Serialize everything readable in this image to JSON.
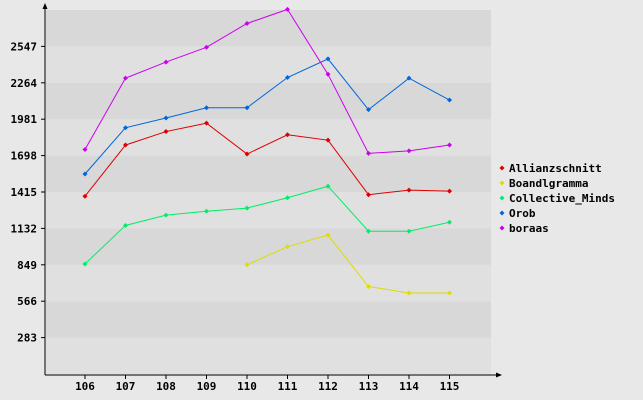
{
  "chart_data": {
    "type": "line",
    "title": "",
    "xlabel": "",
    "ylabel": "",
    "categories": [
      "106",
      "107",
      "108",
      "109",
      "110",
      "111",
      "112",
      "113",
      "114",
      "115"
    ],
    "y_ticks": [
      "283",
      "566",
      "849",
      "1132",
      "1415",
      "1698",
      "1981",
      "2264",
      "2547"
    ],
    "ylim": [
      0,
      2830
    ],
    "grid": "horizontal bands",
    "legend_position": "right",
    "series": [
      {
        "name": "Allianzschnitt",
        "color": "#dd0000",
        "values": [
          1382,
          1780,
          1885,
          1950,
          1710,
          1860,
          1818,
          1394,
          1430,
          1422
        ]
      },
      {
        "name": "Boandlgramma",
        "color": "#dddd00",
        "values": [
          null,
          null,
          null,
          null,
          849,
          990,
          1080,
          680,
          630,
          630
        ]
      },
      {
        "name": "Collective_Minds",
        "color": "#00ee66",
        "values": [
          855,
          1155,
          1235,
          1265,
          1290,
          1370,
          1460,
          1110,
          1110,
          1180
        ]
      },
      {
        "name": "Orob",
        "color": "#0066dd",
        "values": [
          1555,
          1915,
          1990,
          2070,
          2070,
          2305,
          2450,
          2055,
          2300,
          2130
        ]
      },
      {
        "name": "boraas",
        "color": "#cc00ee",
        "values": [
          1745,
          2300,
          2425,
          2540,
          2725,
          2835,
          2330,
          1715,
          1735,
          1780
        ]
      }
    ]
  }
}
